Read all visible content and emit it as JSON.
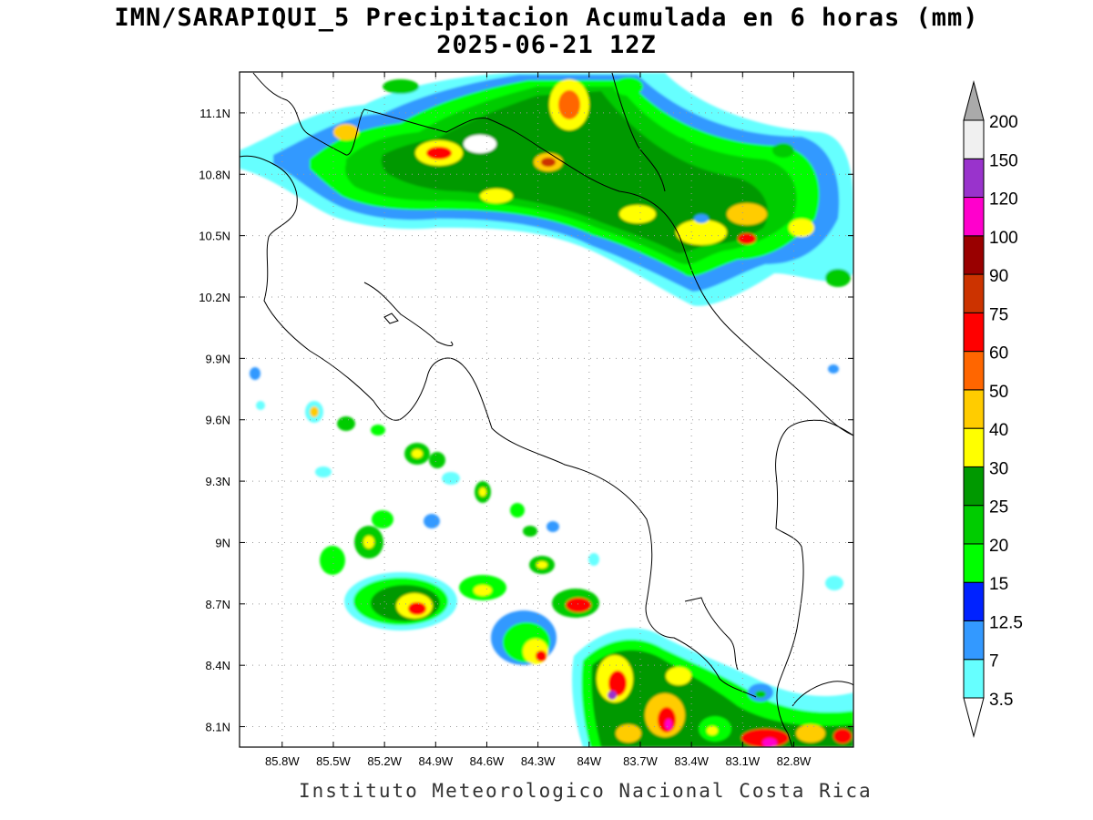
{
  "title": {
    "line1": "IMN/SARAPIQUI_5 Precipitacion Acumulada en 6 horas (mm)",
    "line2": "2025-06-21 12Z"
  },
  "footer": "Instituto Meteorologico Nacional Costa Rica",
  "map": {
    "lon_range": [
      -86.05,
      -82.45
    ],
    "lat_range": [
      8.0,
      11.3
    ],
    "lon_ticks": [
      {
        "value": -85.8,
        "label": "85.8W"
      },
      {
        "value": -85.5,
        "label": "85.5W"
      },
      {
        "value": -85.2,
        "label": "85.2W"
      },
      {
        "value": -84.9,
        "label": "84.9W"
      },
      {
        "value": -84.6,
        "label": "84.6W"
      },
      {
        "value": -84.3,
        "label": "84.3W"
      },
      {
        "value": -84.0,
        "label": "84W"
      },
      {
        "value": -83.7,
        "label": "83.7W"
      },
      {
        "value": -83.4,
        "label": "83.4W"
      },
      {
        "value": -83.1,
        "label": "83.1W"
      },
      {
        "value": -82.8,
        "label": "82.8W"
      }
    ],
    "lat_ticks": [
      {
        "value": 11.1,
        "label": "11.1N"
      },
      {
        "value": 10.8,
        "label": "10.8N"
      },
      {
        "value": 10.5,
        "label": "10.5N"
      },
      {
        "value": 10.2,
        "label": "10.2N"
      },
      {
        "value": 9.9,
        "label": "9.9N"
      },
      {
        "value": 9.6,
        "label": "9.6N"
      },
      {
        "value": 9.3,
        "label": "9.3N"
      },
      {
        "value": 9.0,
        "label": "9N"
      },
      {
        "value": 8.7,
        "label": "8.7N"
      },
      {
        "value": 8.4,
        "label": "8.4N"
      },
      {
        "value": 8.1,
        "label": "8.1N"
      }
    ],
    "grid": true
  },
  "colorbar": {
    "levels": [
      {
        "label": "3.5",
        "color": "#66ffff"
      },
      {
        "label": "7",
        "color": "#3399ff"
      },
      {
        "label": "12.5",
        "color": "#0022ff"
      },
      {
        "label": "15",
        "color": "#00ff00"
      },
      {
        "label": "20",
        "color": "#00cc00"
      },
      {
        "label": "25",
        "color": "#009900"
      },
      {
        "label": "30",
        "color": "#ffff00"
      },
      {
        "label": "40",
        "color": "#ffcc00"
      },
      {
        "label": "50",
        "color": "#ff6600"
      },
      {
        "label": "60",
        "color": "#ff0000"
      },
      {
        "label": "75",
        "color": "#cc3300"
      },
      {
        "label": "90",
        "color": "#990000"
      },
      {
        "label": "100",
        "color": "#ff00cc"
      },
      {
        "label": "120",
        "color": "#9933cc"
      },
      {
        "label": "150",
        "color": "#f0f0f0"
      },
      {
        "label": "200",
        "color": "#aaaaaa"
      }
    ]
  }
}
